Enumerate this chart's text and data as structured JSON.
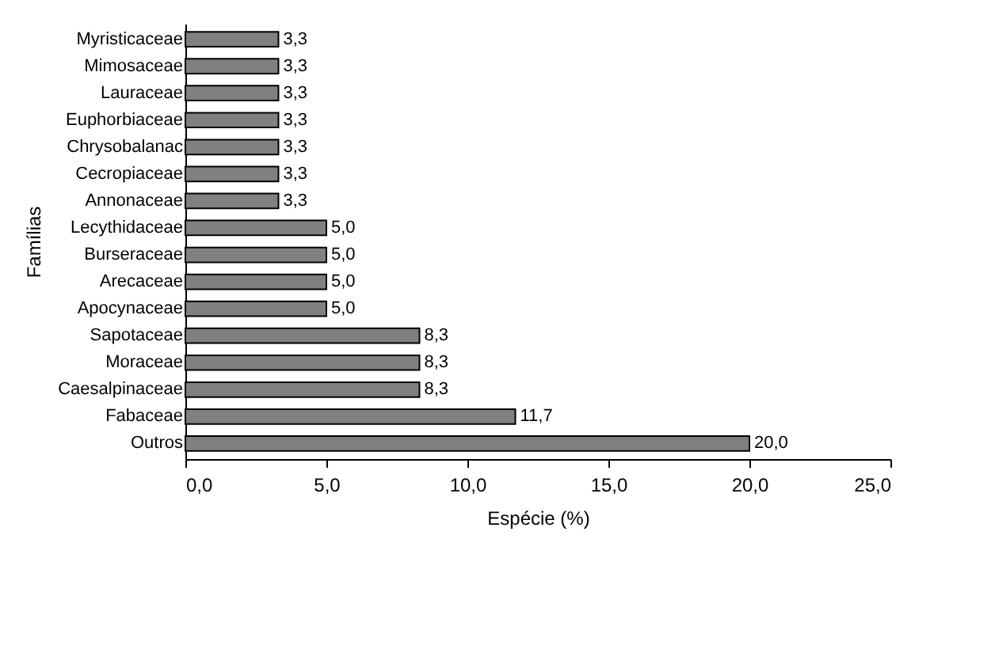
{
  "chart_data": {
    "type": "bar",
    "orientation": "horizontal",
    "xlabel": "Espécie (%)",
    "ylabel": "Famílias",
    "categories": [
      "Myristicaceae",
      "Mimosaceae",
      "Lauraceae",
      "Euphorbiaceae",
      "Chrysobalanac",
      "Cecropiaceae",
      "Annonaceae",
      "Lecythidaceae",
      "Burseraceae",
      "Arecaceae",
      "Apocynaceae",
      "Sapotaceae",
      "Moraceae",
      "Caesalpinaceae",
      "Fabaceae",
      "Outros"
    ],
    "values": [
      3.3,
      3.3,
      3.3,
      3.3,
      3.3,
      3.3,
      3.3,
      5.0,
      5.0,
      5.0,
      5.0,
      8.3,
      8.3,
      8.3,
      11.7,
      20.0
    ],
    "value_labels": [
      "3,3",
      "3,3",
      "3,3",
      "3,3",
      "3,3",
      "3,3",
      "3,3",
      "5,0",
      "5,0",
      "5,0",
      "5,0",
      "8,3",
      "8,3",
      "8,3",
      "11,7",
      "20,0"
    ],
    "color": "#808080",
    "xlim": [
      0,
      25
    ],
    "xticks": [
      {
        "value": 0,
        "label": "0,0"
      },
      {
        "value": 5,
        "label": "5,0"
      },
      {
        "value": 10,
        "label": "10,0"
      },
      {
        "value": 15,
        "label": "15,0"
      },
      {
        "value": 20,
        "label": "20,0"
      },
      {
        "value": 25,
        "label": "25,0"
      }
    ],
    "grid": false
  }
}
